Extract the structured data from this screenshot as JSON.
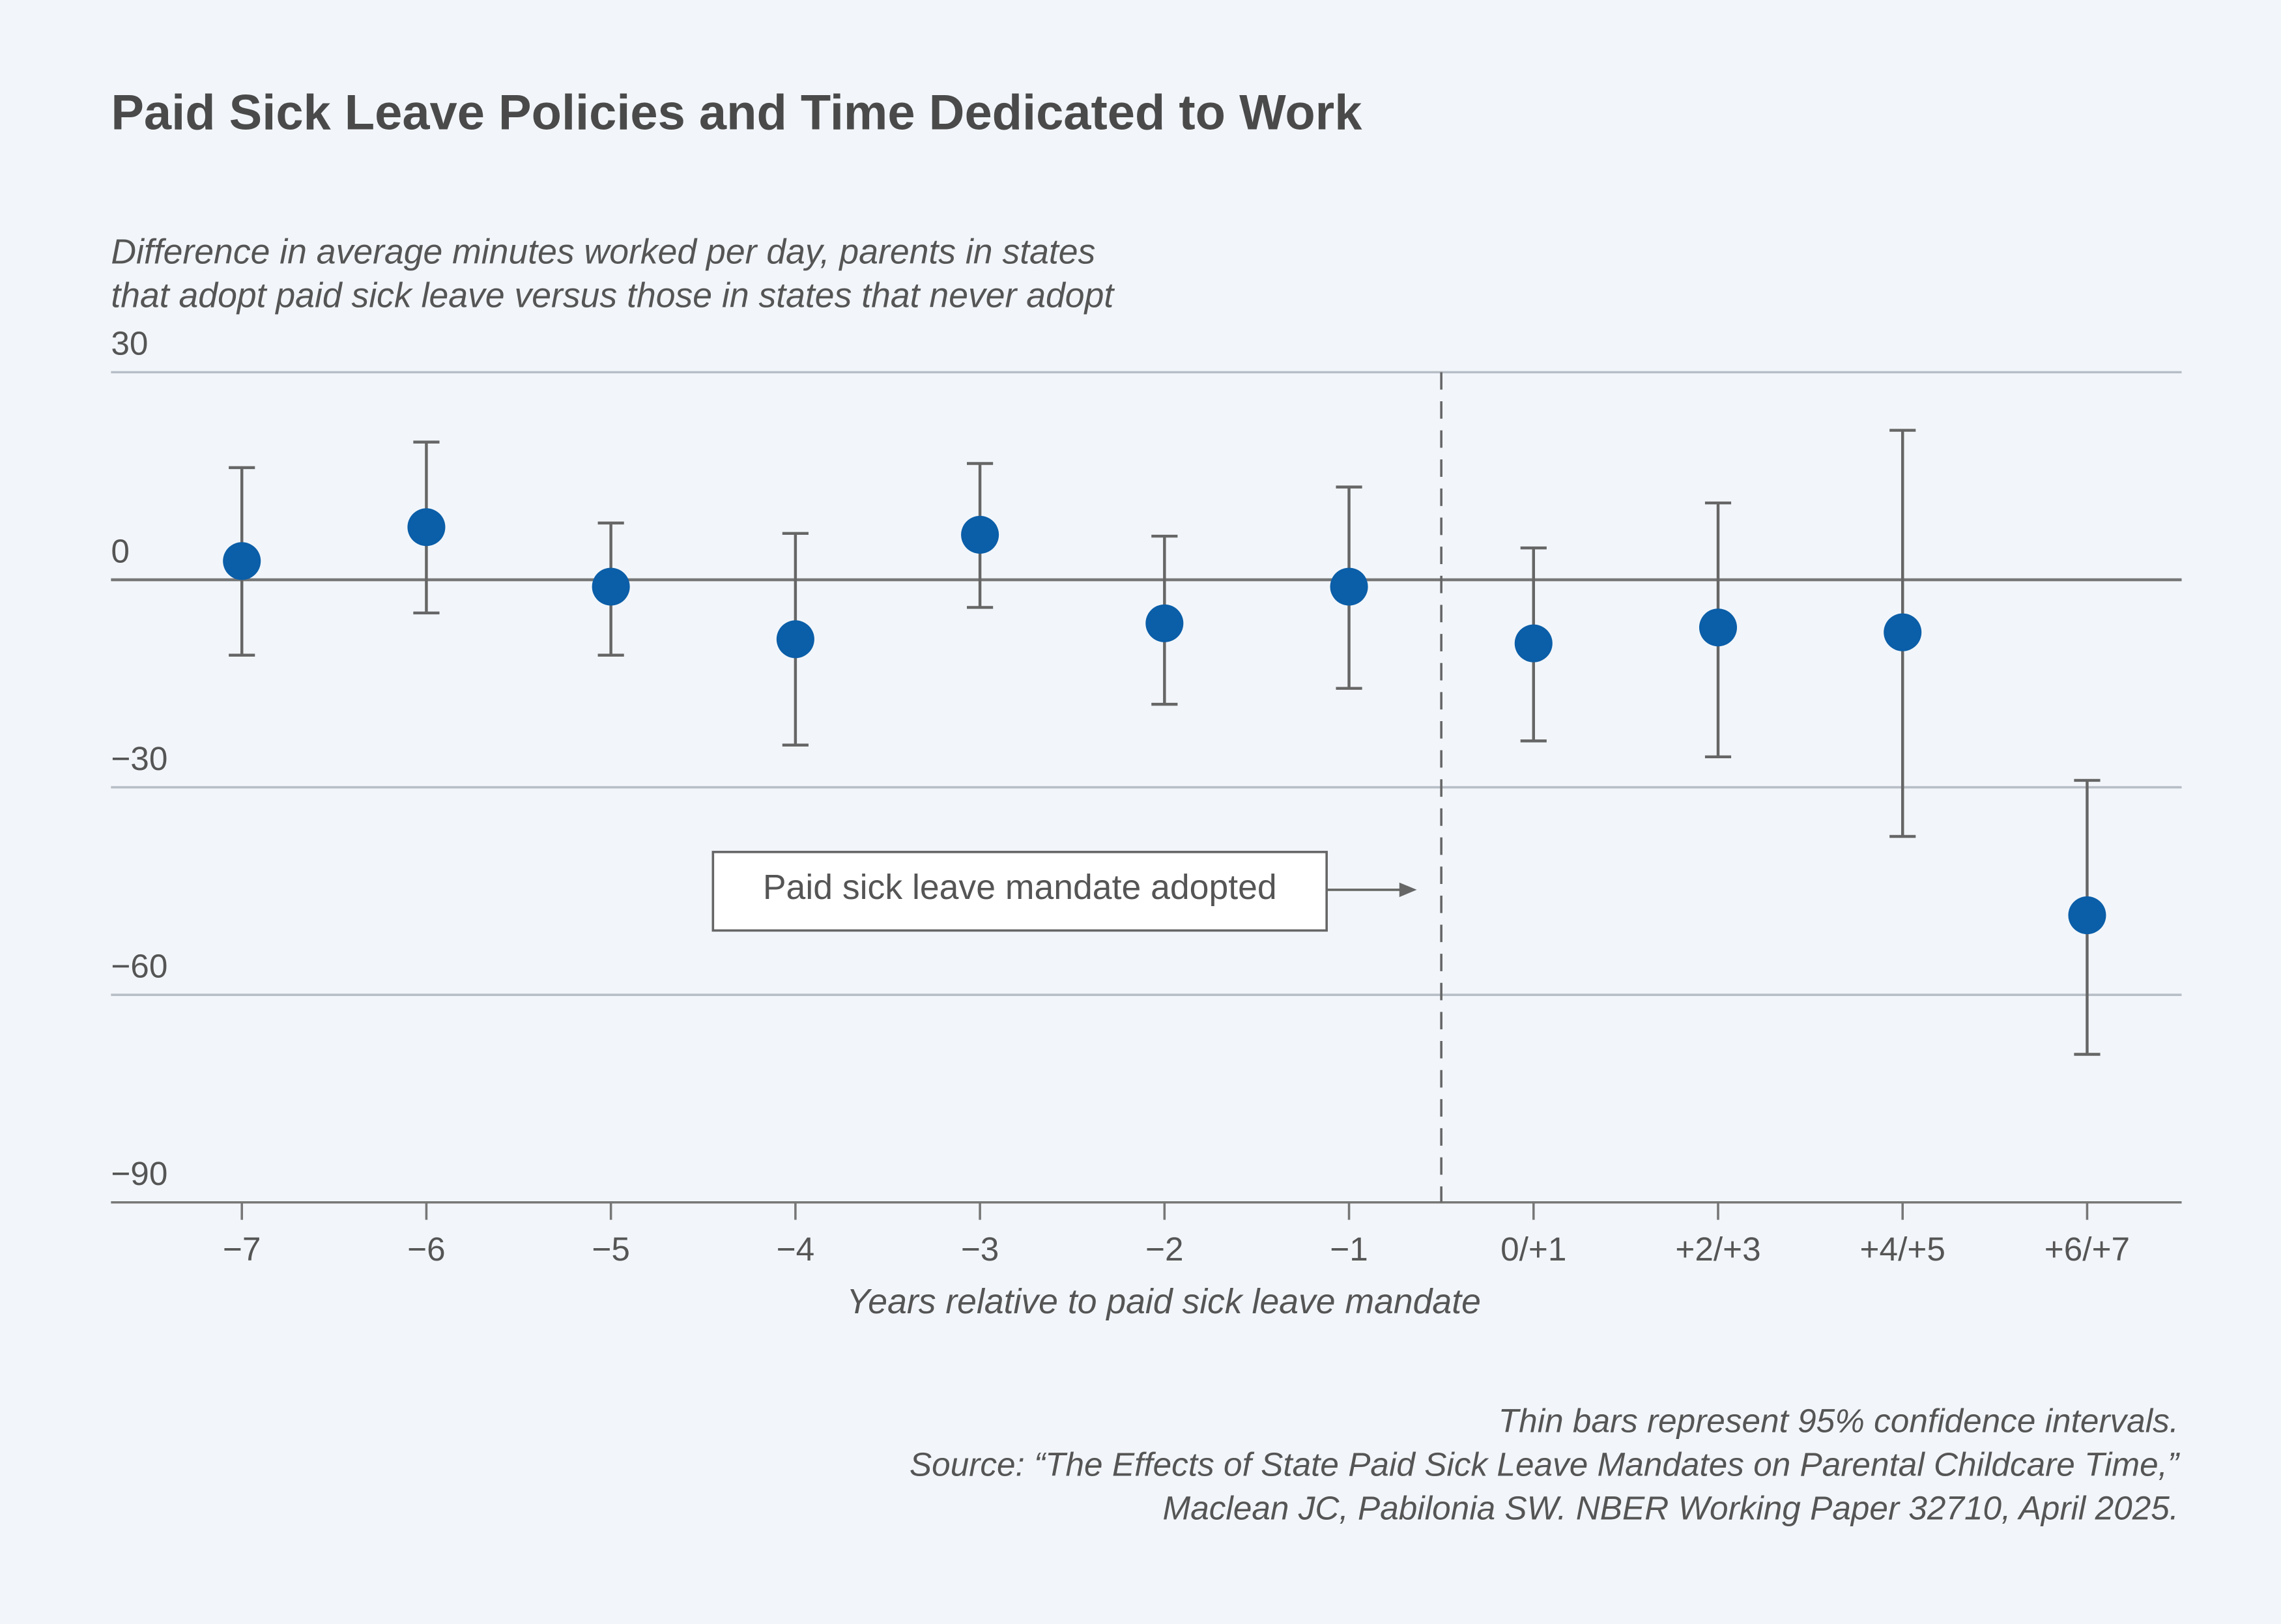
{
  "chart_data": {
    "type": "errorbar",
    "title": "Paid Sick Leave Policies and Time Dedicated to Work",
    "y_label": [
      "Difference in average minutes worked per day, parents in states",
      "that adopt paid sick leave versus those in states that never adopt"
    ],
    "x_label": "Years relative to paid sick leave mandate",
    "annotation": "Paid sick leave mandate adopted",
    "notes": [
      "Thin bars represent 95% confidence intervals.",
      "Source: “The Effects of State Paid Sick Leave Mandates on Parental Childcare Time,”",
      "Maclean JC, Pabilonia SW. NBER Working Paper 32710, April 2025."
    ],
    "categories": [
      "−7",
      "−6",
      "−5",
      "−4",
      "−3",
      "−2",
      "−1",
      "0/+1",
      "+2/+3",
      "+4/+5",
      "+6/+7"
    ],
    "series": [
      {
        "color": "#0b5ea8",
        "bar_color": "#666666",
        "values": [
          2.7,
          7.6,
          -1.0,
          -8.6,
          6.5,
          -6.3,
          -1.0,
          -9.2,
          -6.9,
          -7.6,
          -48.5
        ],
        "ci_low": [
          -10.9,
          -4.8,
          -10.9,
          -23.9,
          -4.0,
          -18.0,
          -15.7,
          -23.3,
          -25.6,
          -37.1,
          -68.6
        ],
        "ci_high": [
          16.2,
          19.9,
          8.2,
          6.7,
          16.8,
          6.3,
          13.4,
          4.6,
          11.1,
          21.6,
          -29.0
        ]
      }
    ],
    "ylim": [
      -90,
      30
    ],
    "yticks": [
      {
        "value": -90,
        "label": "−90"
      },
      {
        "value": -60,
        "label": "−60"
      },
      {
        "value": -30,
        "label": "−30"
      },
      0,
      30
    ],
    "grid": true
  }
}
